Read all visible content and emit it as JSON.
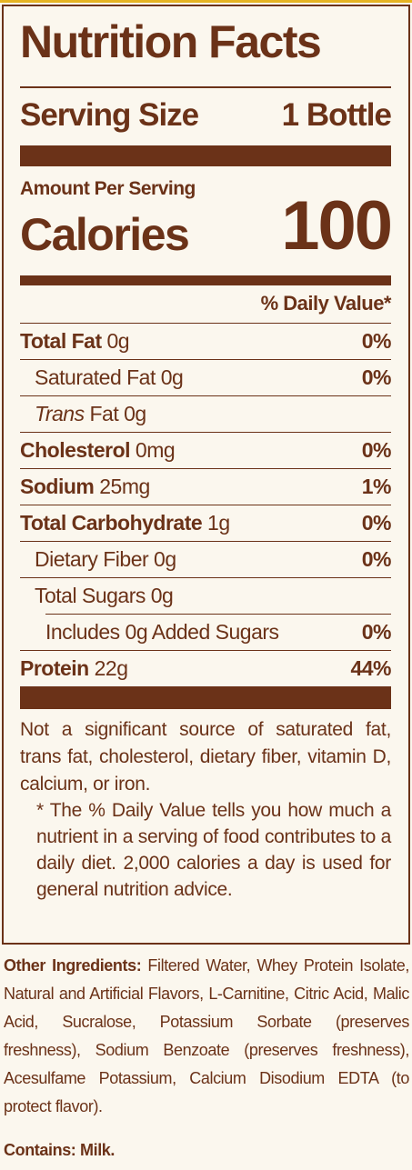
{
  "header": {
    "title": "Nutrition Facts",
    "serving_size_label": "Serving Size",
    "serving_size": "1 Bottle"
  },
  "calories": {
    "amount_label": "Amount Per Serving",
    "label": "Calories",
    "value": "100"
  },
  "daily_value_header": "% Daily Value*",
  "nutrients": [
    {
      "name": "Total Fat",
      "amount": "0g",
      "dv": "0%"
    },
    {
      "name": "Saturated Fat",
      "amount": "0g",
      "dv": "0%"
    },
    {
      "name_italic": "Trans",
      "name": "Fat",
      "amount": "0g"
    },
    {
      "name": "Cholesterol",
      "amount": "0mg",
      "dv": "0%"
    },
    {
      "name": "Sodium",
      "amount": "25mg",
      "dv": "1%"
    },
    {
      "name": "Total Carbohydrate",
      "amount": "1g",
      "dv": "0%"
    },
    {
      "name": "Dietary Fiber",
      "amount": "0g",
      "dv": "0%"
    },
    {
      "name": "Total Sugars",
      "amount": "0g"
    },
    {
      "name": "Includes 0g Added Sugars",
      "dv": "0%"
    },
    {
      "name": "Protein",
      "amount": "22g",
      "dv": "44%"
    }
  ],
  "note": "Not a significant source of saturated fat, trans fat, cholesterol, dietary fiber, vitamin D, calcium, or iron.",
  "footnote": "* The % Daily Value tells you how much a nutrient in a serving of food contributes to a daily diet. 2,000 calories a day is used for general nutrition advice.",
  "ingredients": {
    "label": "Other Ingredients:",
    "text": "Filtered Water, Whey Protein Isolate, Natural and Artificial Flavors, L-Carnitine, Citric Acid, Malic Acid, Sucralose, Potassium Sorbate (preserves freshness), Sodium Benzoate (preserves freshness), Acesulfame Potassium, Calcium Disodium EDTA (to protect flavor)."
  },
  "contains": "Contains: Milk."
}
